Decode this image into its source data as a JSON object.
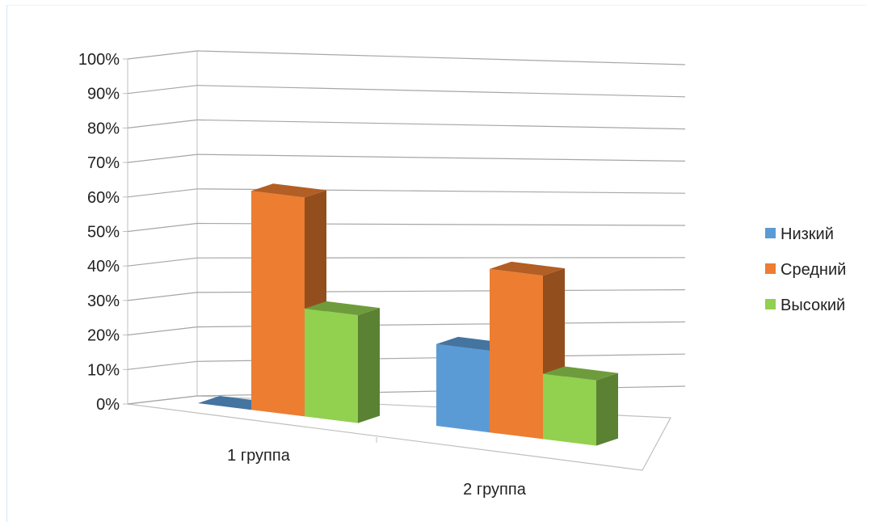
{
  "chart_data": {
    "type": "bar",
    "categories": [
      "1 группа",
      "2 группа"
    ],
    "series": [
      {
        "name": "Низкий",
        "values": [
          0,
          25
        ],
        "color": "#5b9bd5"
      },
      {
        "name": "Средний",
        "values": [
          67,
          50
        ],
        "color": "#ed7d31"
      },
      {
        "name": "Высокий",
        "values": [
          33,
          20
        ],
        "color": "#92d050"
      }
    ],
    "yticks": [
      "0%",
      "10%",
      "20%",
      "30%",
      "40%",
      "50%",
      "60%",
      "70%",
      "80%",
      "90%",
      "100%"
    ],
    "ylim": [
      0,
      100
    ],
    "grid": true,
    "legend_position": "right",
    "style": "3d-clustered-column"
  }
}
